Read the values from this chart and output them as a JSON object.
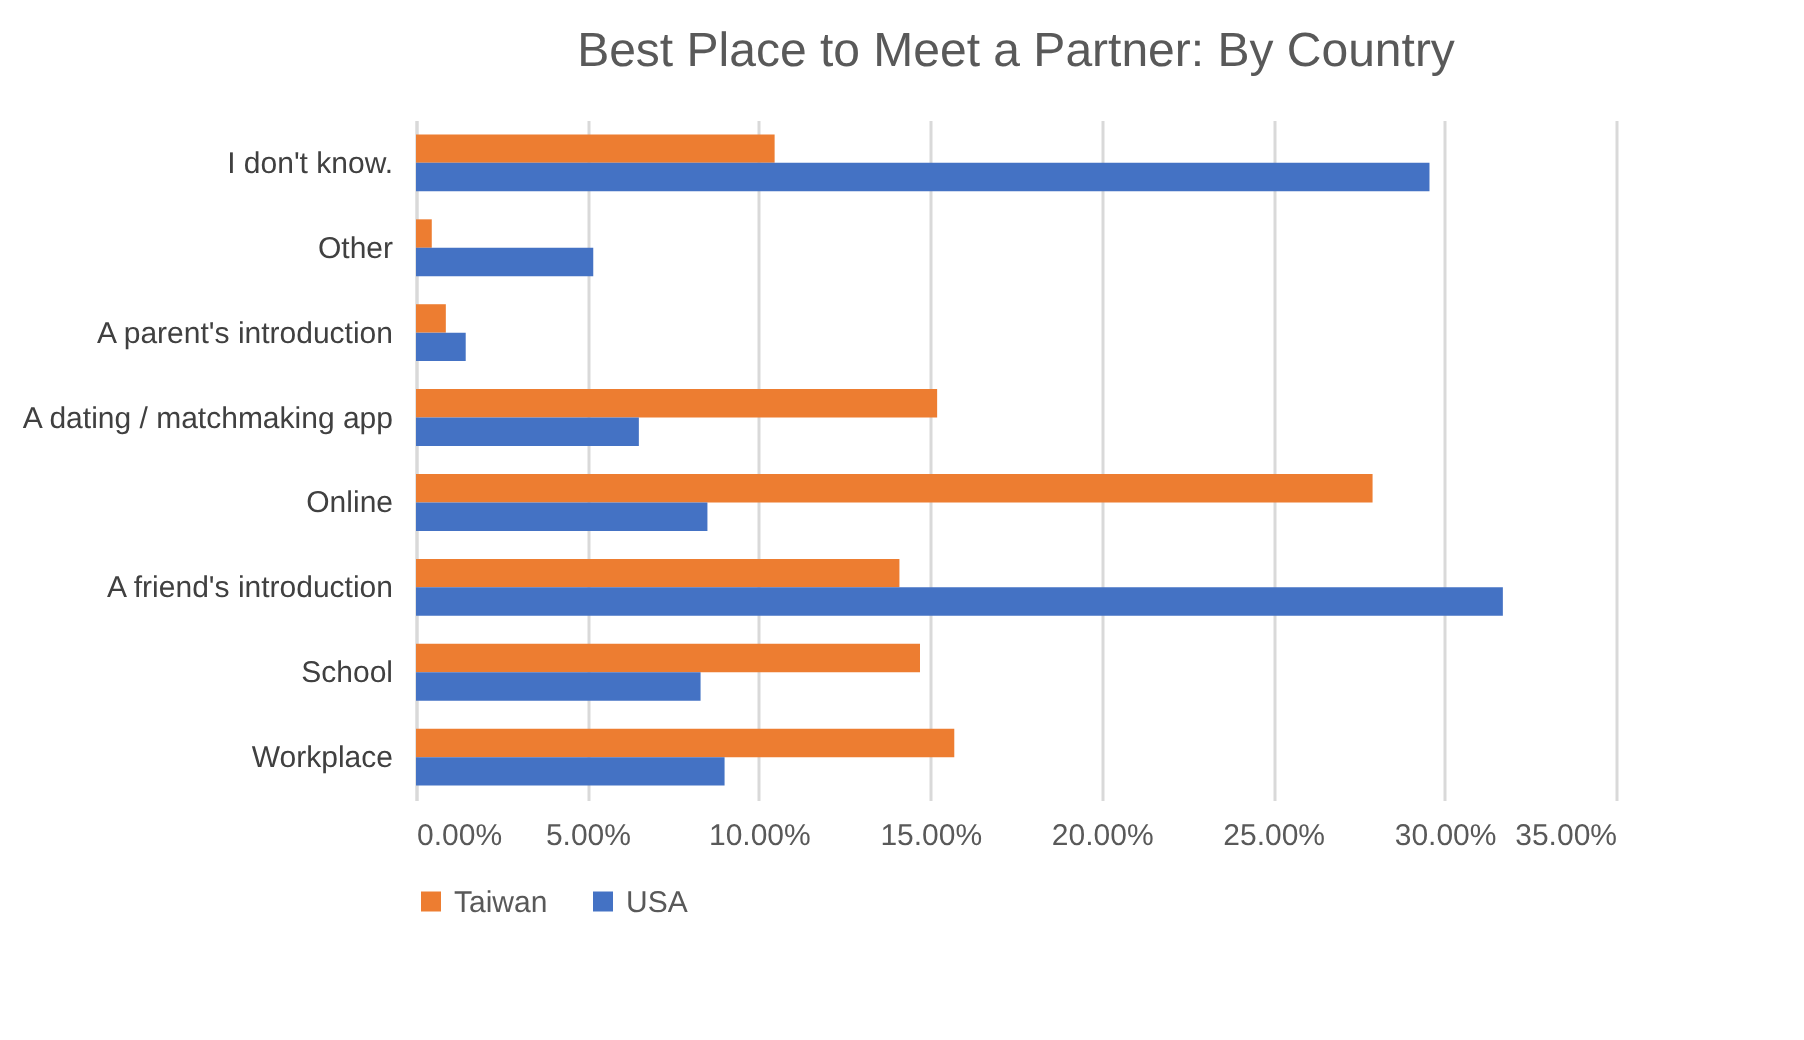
{
  "chart_data": {
    "type": "bar",
    "orientation": "horizontal",
    "title": "Best Place to Meet a Partner: By Country",
    "categories": [
      "I don't know.",
      "Other",
      "A parent's introduction",
      "A dating / matchmaking app",
      "Online",
      "A friend's introduction",
      "School",
      "Workplace"
    ],
    "series": [
      {
        "name": "Taiwan",
        "color": "#ed7d31",
        "values": [
          10.46,
          0.46,
          0.87,
          15.2,
          27.9,
          14.1,
          14.7,
          15.7
        ]
      },
      {
        "name": "USA",
        "color": "#4472c4",
        "values": [
          29.56,
          5.17,
          1.45,
          6.5,
          8.5,
          31.7,
          8.3,
          9.0
        ]
      }
    ],
    "xlim": [
      0,
      35
    ],
    "xticks": [
      {
        "value": 0,
        "label": "0.00%"
      },
      {
        "value": 5,
        "label": "5.00%"
      },
      {
        "value": 10,
        "label": "10.00%"
      },
      {
        "value": 15,
        "label": "15.00%"
      },
      {
        "value": 20,
        "label": "20.00%"
      },
      {
        "value": 25,
        "label": "25.00%"
      },
      {
        "value": 30,
        "label": "30.00%"
      },
      {
        "value": 35,
        "label": "35.00%"
      }
    ],
    "grid": "x",
    "legend": "bottom"
  }
}
